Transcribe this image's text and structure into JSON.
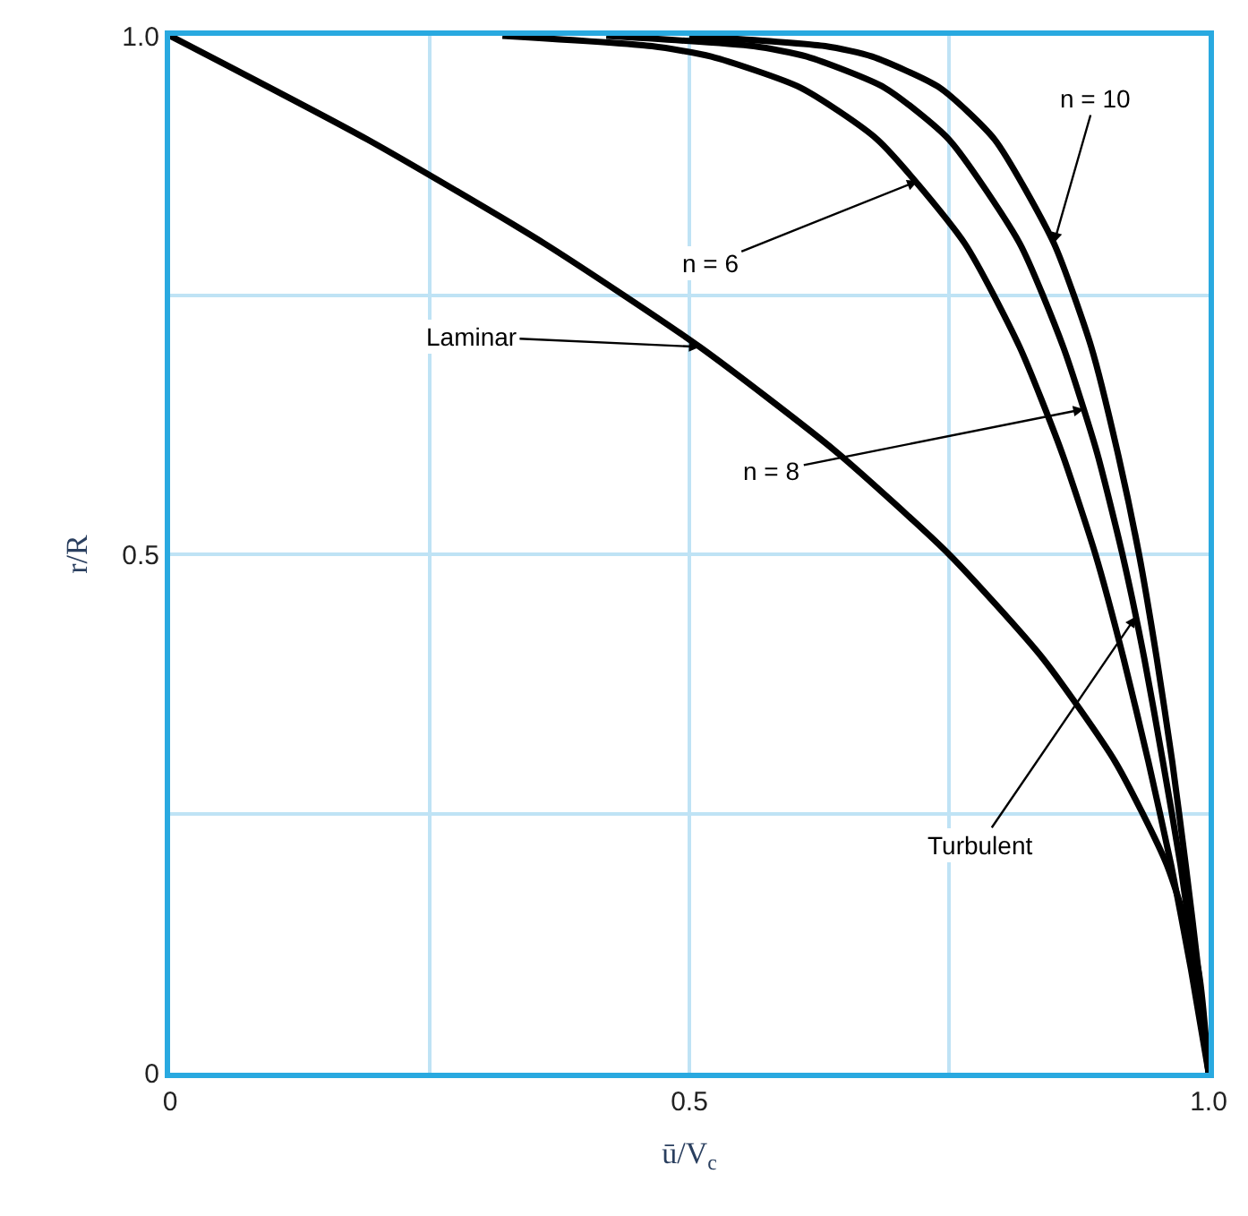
{
  "chart_data": {
    "type": "line",
    "xlabel": "ū/V$_{c}$",
    "ylabel": "r/R",
    "xlim": [
      0,
      1
    ],
    "ylim": [
      0,
      1
    ],
    "xticks": [
      0,
      {
        "value": 0.25,
        "label": null
      },
      0.5,
      {
        "value": 0.75,
        "label": null
      },
      {
        "value": 1,
        "label": "1.0"
      }
    ],
    "yticks": [
      0,
      {
        "value": 0.25,
        "label": null
      },
      0.5,
      {
        "value": 0.75,
        "label": null
      },
      {
        "value": 1,
        "label": "1.0"
      }
    ],
    "grid": true,
    "marker": "none",
    "line_style": "solid",
    "series": [
      {
        "color": "#000000",
        "x": [
          1,
          0.99,
          0.96,
          0.91,
          0.84,
          0.75,
          0.64,
          0.51,
          0.36,
          0.19,
          0
        ],
        "values": [
          0,
          0.1,
          0.2,
          0.3,
          0.4,
          0.5,
          0.6,
          0.7,
          0.8,
          0.9,
          1
        ]
      },
      {
        "color": "#000000",
        "x": [
          1,
          0.983,
          0.964,
          0.942,
          0.918,
          0.891,
          0.858,
          0.818,
          0.765,
          0.681,
          0.607,
          0.521,
          0.464,
          0.32
        ],
        "values": [
          0,
          0.1,
          0.2,
          0.3,
          0.4,
          0.5,
          0.6,
          0.7,
          0.8,
          0.9,
          0.95,
          0.98,
          0.99,
          1
        ]
      },
      {
        "color": "#000000",
        "x": [
          1,
          0.987,
          0.973,
          0.956,
          0.938,
          0.917,
          0.892,
          0.86,
          0.818,
          0.75,
          0.688,
          0.613,
          0.562,
          0.42
        ],
        "values": [
          0,
          0.1,
          0.2,
          0.3,
          0.4,
          0.5,
          0.6,
          0.7,
          0.8,
          0.9,
          0.95,
          0.98,
          0.99,
          1
        ]
      },
      {
        "color": "#000000",
        "x": [
          1,
          0.99,
          0.978,
          0.965,
          0.95,
          0.933,
          0.912,
          0.887,
          0.851,
          0.794,
          0.741,
          0.676,
          0.631,
          0.5
        ],
        "values": [
          0,
          0.1,
          0.2,
          0.3,
          0.4,
          0.5,
          0.6,
          0.7,
          0.8,
          0.9,
          0.95,
          0.98,
          0.99,
          1
        ]
      }
    ],
    "annotations": [
      {
        "text": "Laminar",
        "x": 0.51,
        "y": 0.7
      },
      {
        "text": "n = 6",
        "x": 0.72,
        "y": 0.86
      },
      {
        "text": "n = 8",
        "x": 0.88,
        "y": 0.64
      },
      {
        "text": "n = 10",
        "x": 0.851,
        "y": 0.8
      },
      {
        "text": "Turbulent",
        "x": 0.93,
        "y": 0.44
      }
    ]
  }
}
